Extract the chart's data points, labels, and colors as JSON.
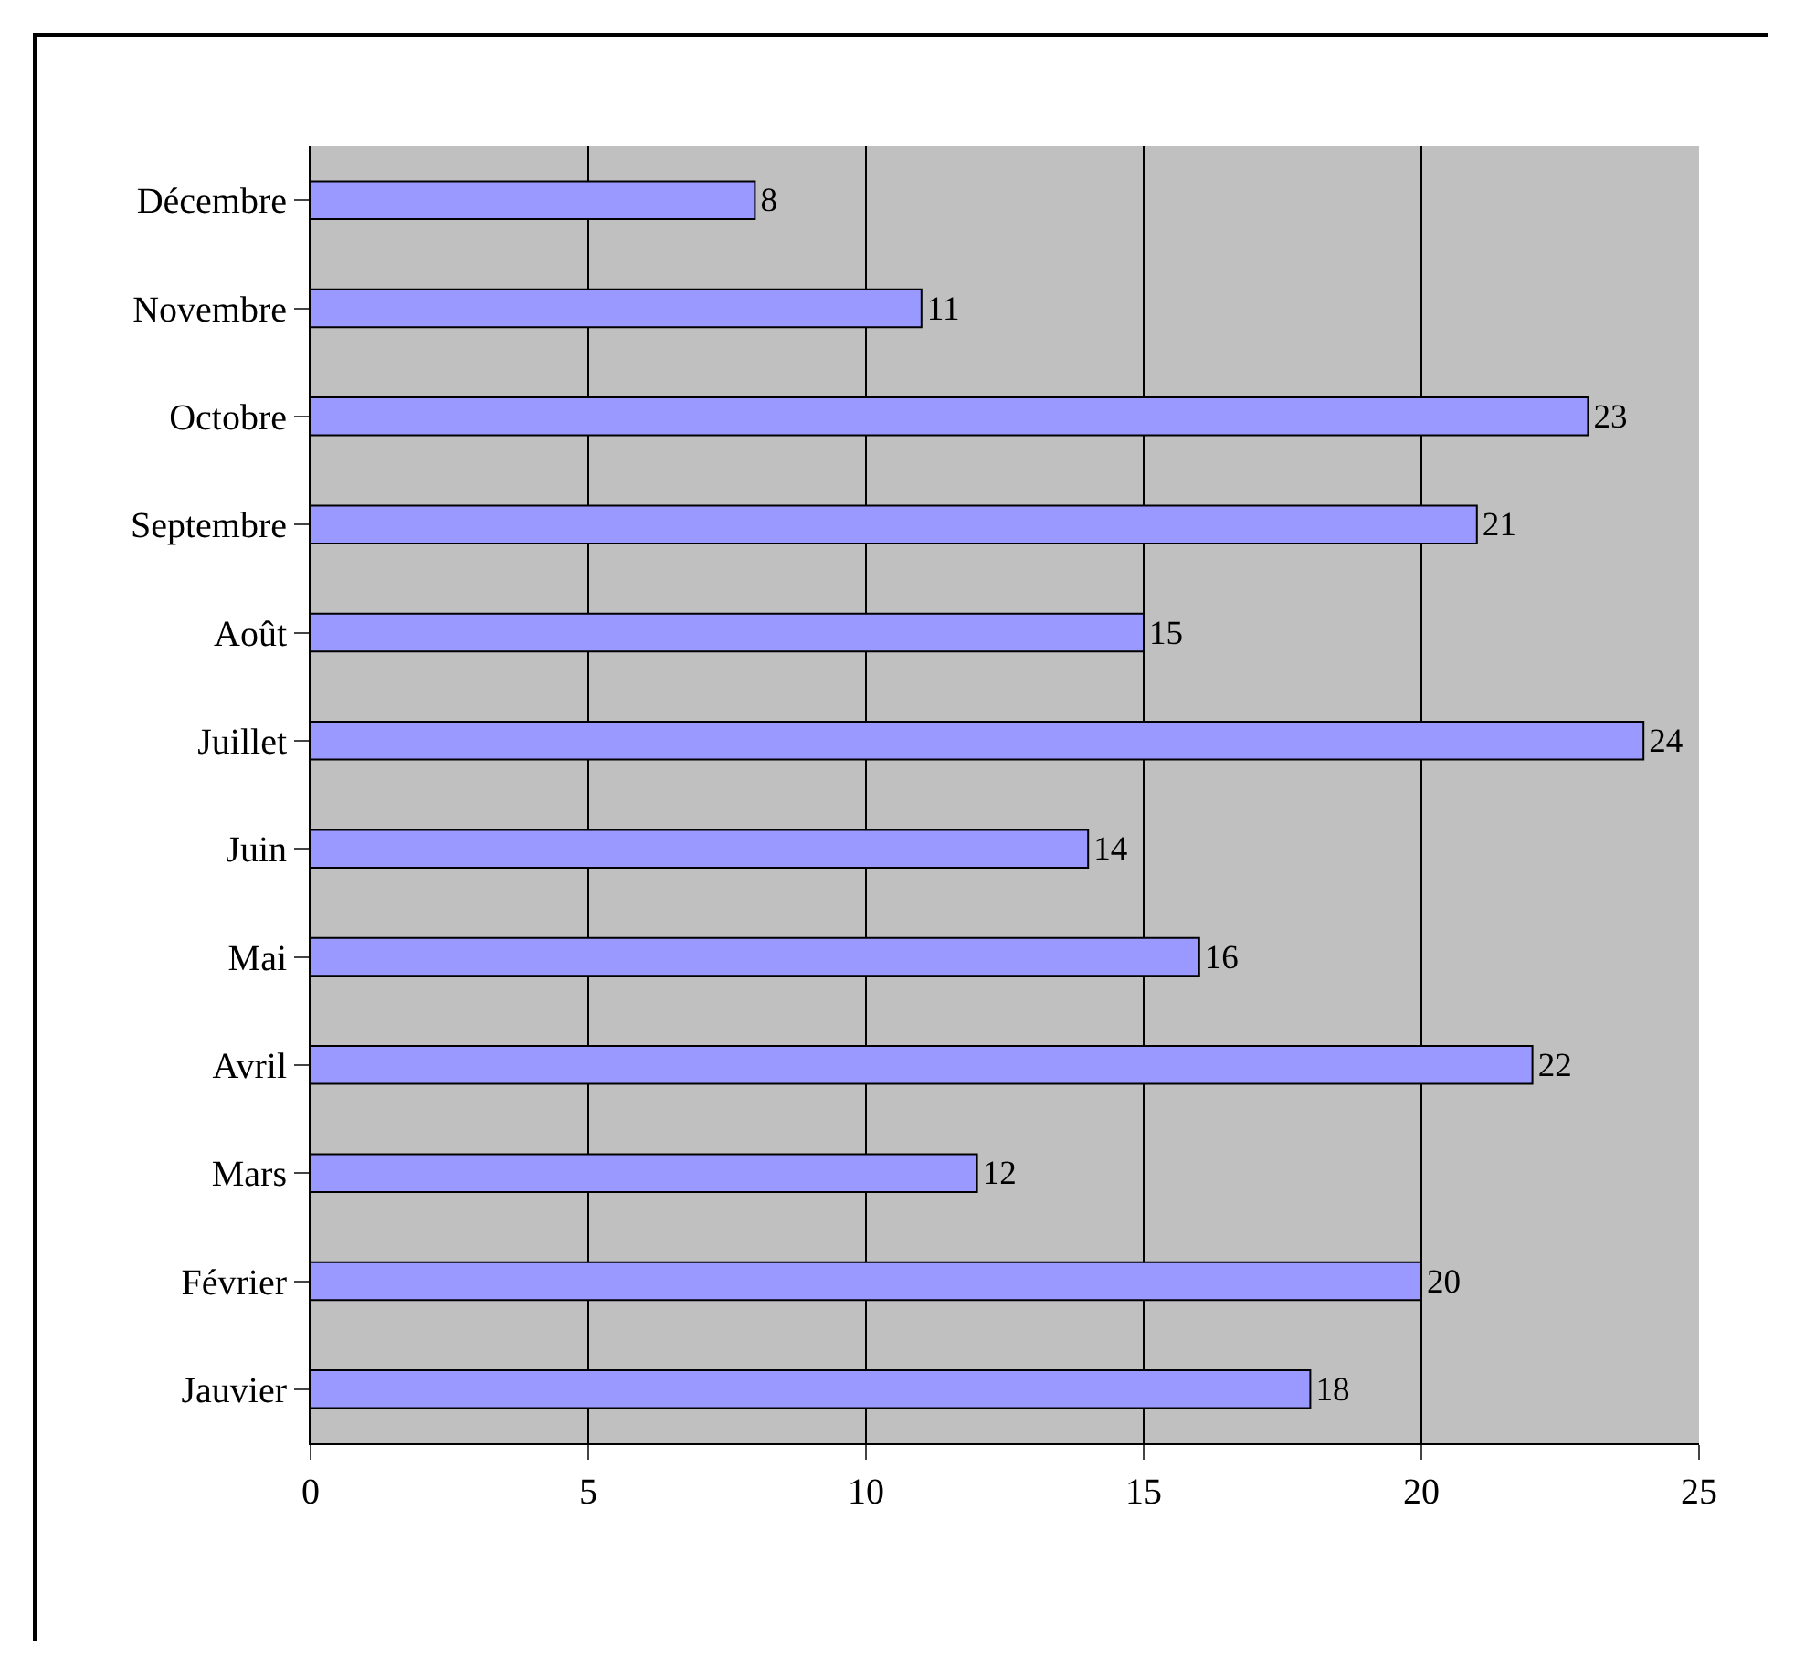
{
  "chart_data": {
    "type": "bar",
    "orientation": "horizontal",
    "categories": [
      "Décembre",
      "Novembre",
      "Octobre",
      "Septembre",
      "Août",
      "Juillet",
      "Juin",
      "Mai",
      "Avril",
      "Mars",
      "Février",
      "Jauvier"
    ],
    "values": [
      8,
      11,
      23,
      21,
      15,
      24,
      14,
      16,
      22,
      12,
      20,
      18
    ],
    "color": "#9999ff",
    "data_labels": true,
    "xlim": [
      0,
      25
    ],
    "xticks": [
      0,
      5,
      10,
      15,
      20,
      25
    ],
    "grid": "x"
  }
}
